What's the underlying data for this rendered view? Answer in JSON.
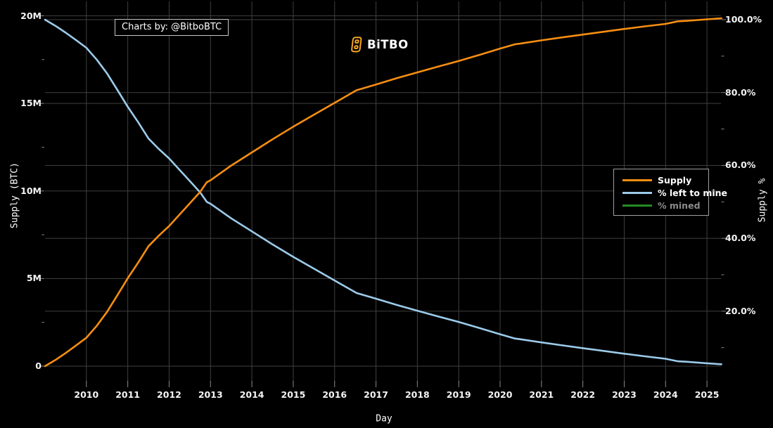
{
  "header": {
    "watermark": "Charts by: @BitboBTC",
    "logo_text": "BiTBO",
    "logo_color": "#F5A623"
  },
  "theme": {
    "background": "#000000",
    "grid_color": "#3f3f3f",
    "axis_tick_color": "#888888",
    "text_color": "#f5f5f5",
    "muted_text_color": "#8c8c8c"
  },
  "chart_data": {
    "type": "line",
    "title": "",
    "xlabel": "Day",
    "ylabel_left": "Supply (BTC)",
    "ylabel_right": "Supply %",
    "xlim": [
      2009,
      2025.35
    ],
    "x_ticks": [
      2010,
      2011,
      2012,
      2013,
      2014,
      2015,
      2016,
      2017,
      2018,
      2019,
      2020,
      2021,
      2022,
      2023,
      2024,
      2025
    ],
    "grid": true,
    "y_left": {
      "lim": [
        0,
        20.05
      ],
      "unit": "million BTC",
      "tick_values": [
        0,
        5,
        10,
        15,
        20
      ],
      "tick_labels": [
        "0",
        "5M",
        "10M",
        "15M",
        "20M"
      ],
      "minor_ticks": [
        2.5,
        7.5,
        12.5,
        17.5
      ]
    },
    "y_right": {
      "lim": [
        0,
        100
      ],
      "unit": "%",
      "tick_values": [
        20,
        40,
        60,
        80,
        100
      ],
      "tick_labels": [
        "20.0%",
        "40.0%",
        "60.0%",
        "80.0%",
        "100.0%"
      ],
      "minor_ticks": [
        10,
        30,
        50,
        70,
        90
      ]
    },
    "series": [
      {
        "name": "Supply",
        "axis": "left",
        "color": "#F78E11",
        "hidden": false,
        "x": [
          2009.0,
          2009.25,
          2009.5,
          2009.75,
          2010.0,
          2010.25,
          2010.5,
          2010.75,
          2011.0,
          2011.25,
          2011.5,
          2011.75,
          2012.0,
          2012.25,
          2012.5,
          2012.75,
          2012.91,
          2013.0,
          2013.5,
          2014.0,
          2014.5,
          2015.0,
          2015.5,
          2016.0,
          2016.53,
          2017.0,
          2017.5,
          2018.0,
          2018.5,
          2019.0,
          2019.5,
          2020.0,
          2020.36,
          2020.5,
          2021.0,
          2021.5,
          2022.0,
          2022.5,
          2023.0,
          2023.5,
          2024.0,
          2024.3,
          2024.5,
          2025.0,
          2025.35
        ],
        "y": [
          0,
          0.35,
          0.75,
          1.18,
          1.62,
          2.3,
          3.1,
          4.05,
          5.02,
          5.9,
          6.85,
          7.45,
          8.0,
          8.65,
          9.3,
          9.95,
          10.5,
          10.61,
          11.45,
          12.2,
          12.95,
          13.67,
          14.35,
          15.03,
          15.75,
          16.08,
          16.44,
          16.77,
          17.1,
          17.42,
          17.77,
          18.13,
          18.375,
          18.42,
          18.6,
          18.77,
          18.93,
          19.09,
          19.25,
          19.4,
          19.54,
          19.6875,
          19.71,
          19.8,
          19.86
        ]
      },
      {
        "name": "% left to mine",
        "axis": "right",
        "color": "#9CCBEA",
        "hidden": false,
        "x": [
          2009.0,
          2009.25,
          2009.5,
          2009.75,
          2010.0,
          2010.25,
          2010.5,
          2010.75,
          2011.0,
          2011.25,
          2011.5,
          2011.75,
          2012.0,
          2012.25,
          2012.5,
          2012.75,
          2012.91,
          2013.0,
          2013.5,
          2014.0,
          2014.5,
          2015.0,
          2015.5,
          2016.0,
          2016.53,
          2017.0,
          2017.5,
          2018.0,
          2018.5,
          2019.0,
          2019.5,
          2020.0,
          2020.36,
          2020.5,
          2021.0,
          2021.5,
          2022.0,
          2022.5,
          2023.0,
          2023.5,
          2024.0,
          2024.3,
          2024.5,
          2025.0,
          2025.35
        ],
        "y": [
          100,
          98.33,
          96.43,
          94.38,
          92.29,
          89.05,
          85.24,
          80.71,
          76.1,
          71.9,
          67.38,
          64.52,
          61.9,
          58.81,
          55.71,
          52.62,
          50.0,
          49.48,
          45.48,
          41.9,
          38.33,
          34.9,
          31.67,
          28.43,
          25.0,
          23.43,
          21.71,
          20.14,
          18.57,
          17.05,
          15.38,
          13.67,
          12.5,
          12.29,
          11.43,
          10.62,
          9.86,
          9.1,
          8.33,
          7.62,
          6.95,
          6.25,
          6.14,
          5.71,
          5.43
        ]
      },
      {
        "name": "% mined",
        "axis": "right",
        "color": "#228B22",
        "hidden": true,
        "x": [],
        "y": []
      }
    ],
    "legend": {
      "position": "middle-right",
      "items": [
        {
          "label": "Supply",
          "color": "#F78E11",
          "muted": false
        },
        {
          "label": "% left to mine",
          "color": "#9CCBEA",
          "muted": false
        },
        {
          "label": "% mined",
          "color": "#228B22",
          "muted": true
        }
      ]
    }
  }
}
